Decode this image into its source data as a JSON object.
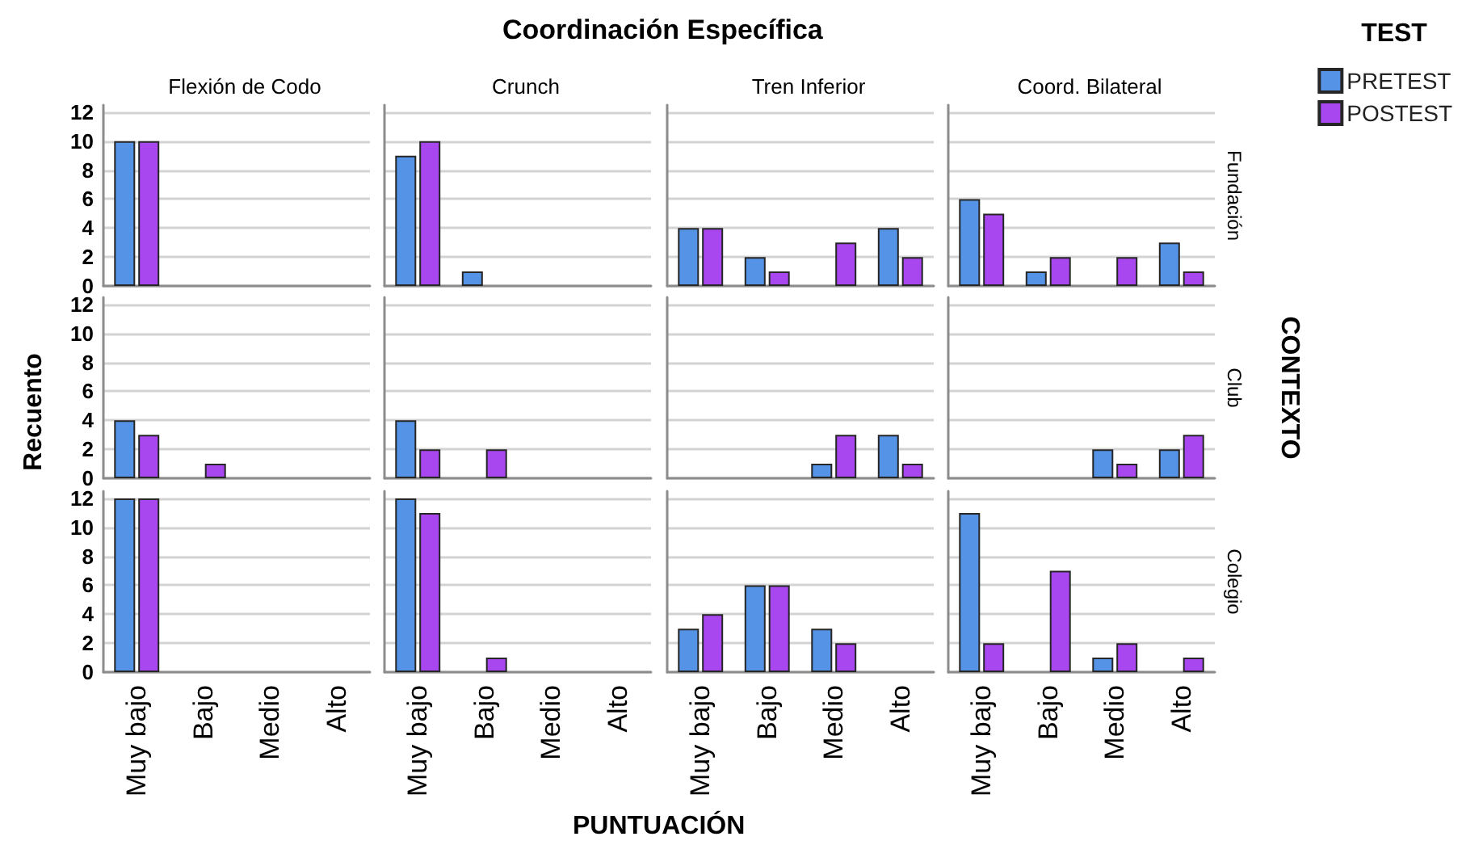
{
  "chart_data": [
    {
      "type": "other",
      "title": "Coordinación Específica",
      "xlabel": "PUNTUACIÓN",
      "ylabel": "Recuento",
      "y2label": "CONTEXTO"
    },
    {
      "type": "bar",
      "title": "Flexión de Codo",
      "categories": [
        "Muy bajo",
        "Bajo",
        "Medio",
        "Alto"
      ],
      "series": [
        {
          "color": "#5593e6",
          "values": [
            10,
            null,
            null,
            null
          ]
        },
        {
          "color": "#a846f0",
          "values": [
            10,
            null,
            null,
            null
          ]
        }
      ],
      "ylim": [
        0,
        12.5
      ],
      "yticks": [
        0,
        2,
        4,
        6,
        8,
        10,
        12
      ],
      "grid": "y",
      "tick_labels": "y"
    },
    {
      "type": "bar",
      "title": "Crunch",
      "categories": [
        "Muy bajo",
        "Bajo",
        "Medio",
        "Alto"
      ],
      "series": [
        {
          "color": "#5593e6",
          "values": [
            9,
            1,
            null,
            null
          ]
        },
        {
          "color": "#a846f0",
          "values": [
            10,
            null,
            null,
            null
          ]
        }
      ],
      "ylim": [
        0,
        12.5
      ],
      "yticks": [
        0,
        2,
        4,
        6,
        8,
        10,
        12
      ],
      "grid": "y",
      "tick_labels": false
    },
    {
      "type": "bar",
      "title": "Tren Inferior",
      "categories": [
        "Muy bajo",
        "Bajo",
        "Medio",
        "Alto"
      ],
      "series": [
        {
          "color": "#5593e6",
          "values": [
            4,
            2,
            null,
            4
          ]
        },
        {
          "color": "#a846f0",
          "values": [
            4,
            1,
            3,
            2
          ]
        }
      ],
      "ylim": [
        0,
        12.5
      ],
      "yticks": [
        0,
        2,
        4,
        6,
        8,
        10,
        12
      ],
      "grid": "y",
      "tick_labels": false
    },
    {
      "type": "bar",
      "title": "Coord. Bilateral",
      "y2label": "Fundación",
      "legend": "top right",
      "legend_title": "TEST",
      "categories": [
        "Muy bajo",
        "Bajo",
        "Medio",
        "Alto"
      ],
      "series": [
        {
          "name": "PRETEST",
          "color": "#5593e6",
          "values": [
            6,
            1,
            null,
            3
          ]
        },
        {
          "name": "POSTEST",
          "color": "#a846f0",
          "values": [
            5,
            2,
            2,
            1
          ]
        }
      ],
      "ylim": [
        0,
        12.5
      ],
      "yticks": [
        0,
        2,
        4,
        6,
        8,
        10,
        12
      ],
      "grid": "y",
      "tick_labels": false
    },
    {
      "type": "bar",
      "categories": [
        "Muy bajo",
        "Bajo",
        "Medio",
        "Alto"
      ],
      "series": [
        {
          "color": "#5593e6",
          "values": [
            4,
            null,
            null,
            null
          ]
        },
        {
          "color": "#a846f0",
          "values": [
            3,
            1,
            null,
            null
          ]
        }
      ],
      "ylim": [
        0,
        12.5
      ],
      "yticks": [
        0,
        2,
        4,
        6,
        8,
        10,
        12
      ],
      "grid": "y",
      "tick_labels": "y"
    },
    {
      "type": "bar",
      "categories": [
        "Muy bajo",
        "Bajo",
        "Medio",
        "Alto"
      ],
      "series": [
        {
          "color": "#5593e6",
          "values": [
            4,
            null,
            null,
            null
          ]
        },
        {
          "color": "#a846f0",
          "values": [
            2,
            2,
            null,
            null
          ]
        }
      ],
      "ylim": [
        0,
        12.5
      ],
      "yticks": [
        0,
        2,
        4,
        6,
        8,
        10,
        12
      ],
      "grid": "y",
      "tick_labels": false
    },
    {
      "type": "bar",
      "categories": [
        "Muy bajo",
        "Bajo",
        "Medio",
        "Alto"
      ],
      "series": [
        {
          "color": "#5593e6",
          "values": [
            null,
            null,
            1,
            3
          ]
        },
        {
          "color": "#a846f0",
          "values": [
            null,
            null,
            3,
            1
          ]
        }
      ],
      "ylim": [
        0,
        12.5
      ],
      "yticks": [
        0,
        2,
        4,
        6,
        8,
        10,
        12
      ],
      "grid": "y",
      "tick_labels": false
    },
    {
      "type": "bar",
      "y2label": "Club",
      "categories": [
        "Muy bajo",
        "Bajo",
        "Medio",
        "Alto"
      ],
      "series": [
        {
          "color": "#5593e6",
          "values": [
            null,
            null,
            2,
            2
          ]
        },
        {
          "color": "#a846f0",
          "values": [
            null,
            null,
            1,
            3
          ]
        }
      ],
      "ylim": [
        0,
        12.5
      ],
      "yticks": [
        0,
        2,
        4,
        6,
        8,
        10,
        12
      ],
      "grid": "y",
      "tick_labels": false
    },
    {
      "type": "bar",
      "categories": [
        "Muy bajo",
        "Bajo",
        "Medio",
        "Alto"
      ],
      "series": [
        {
          "color": "#5593e6",
          "values": [
            12,
            null,
            null,
            null
          ]
        },
        {
          "color": "#a846f0",
          "values": [
            12,
            null,
            null,
            null
          ]
        }
      ],
      "ylim": [
        0,
        12.5
      ],
      "yticks": [
        0,
        2,
        4,
        6,
        8,
        10,
        12
      ],
      "grid": "y"
    },
    {
      "type": "bar",
      "categories": [
        "Muy bajo",
        "Bajo",
        "Medio",
        "Alto"
      ],
      "series": [
        {
          "color": "#5593e6",
          "values": [
            12,
            null,
            null,
            null
          ]
        },
        {
          "color": "#a846f0",
          "values": [
            11,
            1,
            null,
            null
          ]
        }
      ],
      "ylim": [
        0,
        12.5
      ],
      "yticks": [
        0,
        2,
        4,
        6,
        8,
        10,
        12
      ],
      "grid": "y",
      "tick_labels": "x"
    },
    {
      "type": "bar",
      "categories": [
        "Muy bajo",
        "Bajo",
        "Medio",
        "Alto"
      ],
      "series": [
        {
          "color": "#5593e6",
          "values": [
            3,
            6,
            3,
            null
          ]
        },
        {
          "color": "#a846f0",
          "values": [
            4,
            6,
            2,
            null
          ]
        }
      ],
      "ylim": [
        0,
        12.5
      ],
      "yticks": [
        0,
        2,
        4,
        6,
        8,
        10,
        12
      ],
      "grid": "y",
      "tick_labels": "x"
    },
    {
      "type": "bar",
      "y2label": "Colegio",
      "categories": [
        "Muy bajo",
        "Bajo",
        "Medio",
        "Alto"
      ],
      "series": [
        {
          "color": "#5593e6",
          "values": [
            11,
            null,
            1,
            null
          ]
        },
        {
          "color": "#a846f0",
          "values": [
            2,
            7,
            2,
            1
          ]
        }
      ],
      "ylim": [
        0,
        12.5
      ],
      "yticks": [
        0,
        2,
        4,
        6,
        8,
        10,
        12
      ],
      "grid": "y",
      "tick_labels": "x"
    }
  ]
}
